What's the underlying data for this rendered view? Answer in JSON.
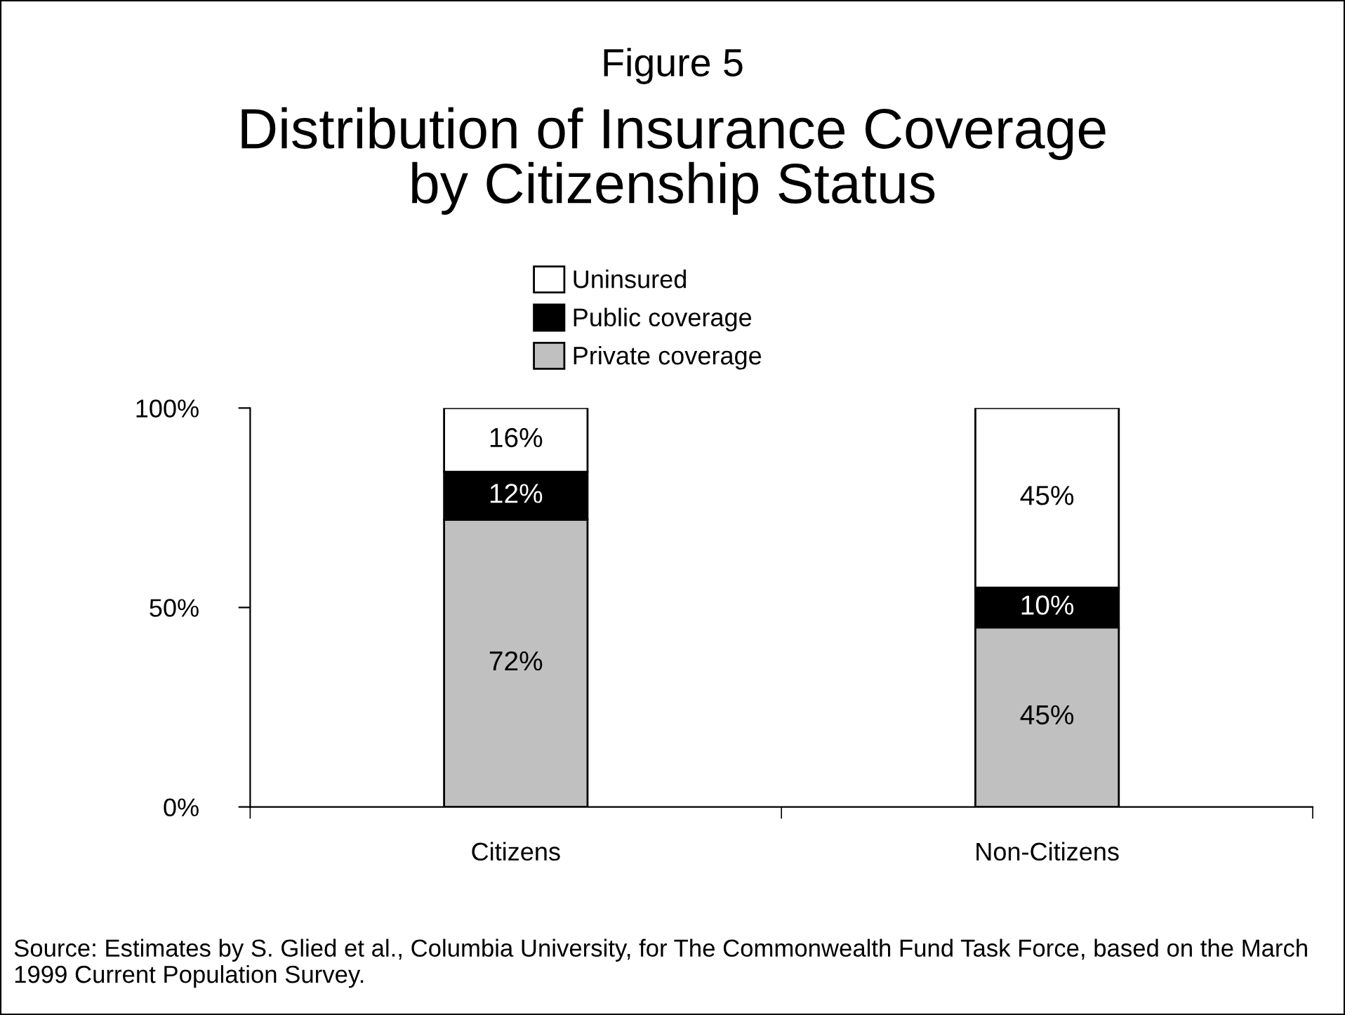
{
  "chart_data": {
    "type": "bar",
    "title": "Figure 5",
    "subtitle": "Distribution of Insurance Coverage\nby Citizenship Status",
    "categories": [
      "Citizens",
      "Non-Citizens"
    ],
    "stacked": true,
    "series": [
      {
        "name": "Private coverage",
        "color": "#c0c0c0",
        "values": [
          72,
          45
        ],
        "value_labels": [
          "72%",
          "45%"
        ]
      },
      {
        "name": "Public coverage",
        "color": "#000000",
        "values": [
          12,
          10
        ],
        "value_labels": [
          "12%",
          "10%"
        ]
      },
      {
        "name": "Uninsured",
        "color": "#ffffff",
        "values": [
          16,
          45
        ],
        "value_labels": [
          "16%",
          "45%"
        ]
      }
    ],
    "ylim": [
      0,
      100
    ],
    "yticks": [
      {
        "value": 0,
        "label": "0%"
      },
      {
        "value": 50,
        "label": "50%"
      },
      {
        "value": 100,
        "label": "100%"
      }
    ],
    "grid": false,
    "legend": "top",
    "annotations": [
      "Source: Estimates by S. Glied et al., Columbia University, for The Commonwealth Fund Task Force, based on the March 1999 Current Population Survey."
    ]
  }
}
